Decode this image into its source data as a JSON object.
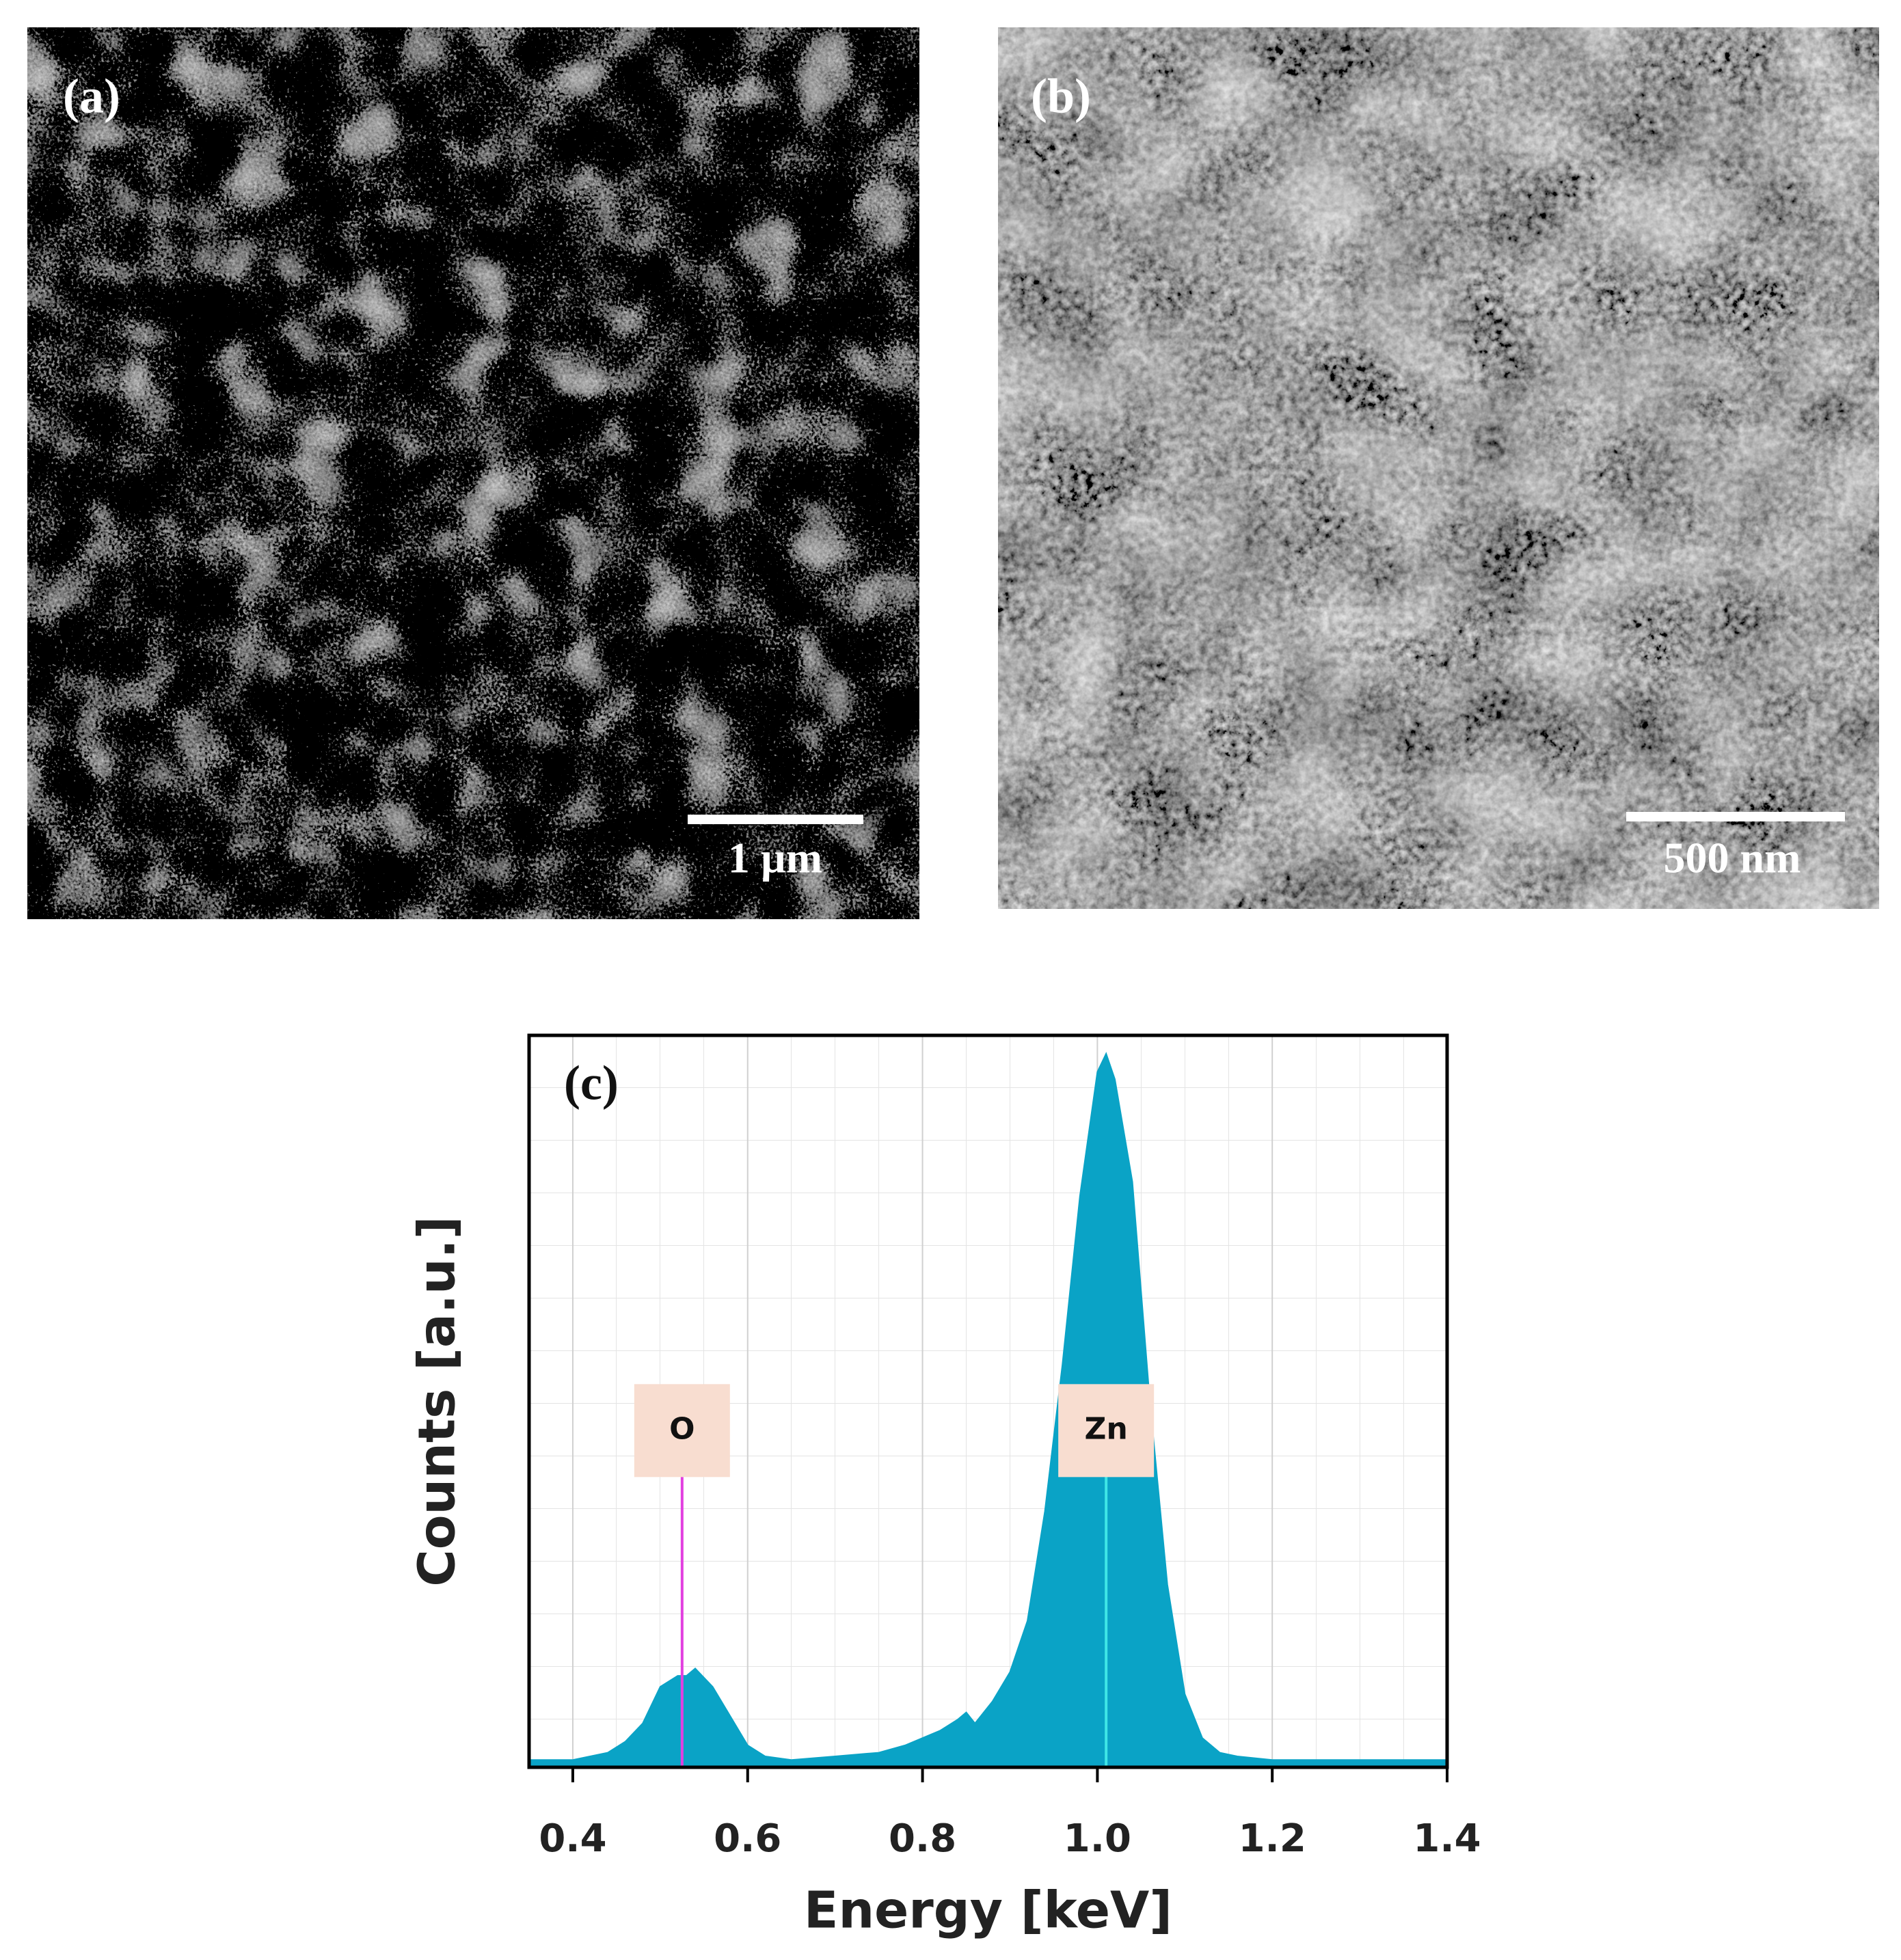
{
  "images": [
    {
      "label": "(a)",
      "scale_bar": "1 µm"
    },
    {
      "label": "(b)",
      "scale_bar": "500 nm"
    }
  ],
  "chart_data": {
    "type": "area",
    "panel_label": "(c)",
    "x_label": "Energy [keV]",
    "y_label": "Counts [a.u.]",
    "x": [
      0.35,
      0.4,
      0.44,
      0.46,
      0.48,
      0.5,
      0.52,
      0.53,
      0.54,
      0.56,
      0.58,
      0.6,
      0.62,
      0.65,
      0.7,
      0.75,
      0.78,
      0.8,
      0.82,
      0.84,
      0.85,
      0.86,
      0.88,
      0.9,
      0.92,
      0.94,
      0.96,
      0.98,
      1.0,
      1.01,
      1.02,
      1.04,
      1.06,
      1.08,
      1.1,
      1.12,
      1.14,
      1.16,
      1.2,
      1.3,
      1.4
    ],
    "values": [
      1,
      1,
      2,
      3.5,
      6,
      11,
      12.5,
      12.5,
      13.5,
      11,
      7,
      3,
      1.5,
      1,
      1.5,
      2,
      3,
      4,
      5,
      6.5,
      7.5,
      6,
      9,
      13,
      20,
      35,
      55,
      78,
      95,
      97.5,
      94,
      80,
      50,
      25,
      10,
      4,
      2,
      1.5,
      1,
      1,
      1
    ],
    "color": "#0aa3c6",
    "xlim": [
      0.35,
      1.4
    ],
    "ylim": [
      0,
      100
    ],
    "xticks": [
      0.4,
      0.6,
      0.8,
      {
        "value": 1,
        "label": "1.0"
      },
      1.2,
      1.4
    ],
    "grid": true,
    "annotations": [
      {
        "text": "O",
        "x": 0.525,
        "y": 46,
        "color": "#e23fe0"
      },
      {
        "text": "Zn",
        "x": 1.01,
        "y": 46,
        "color": "#3fe6e6"
      }
    ]
  }
}
